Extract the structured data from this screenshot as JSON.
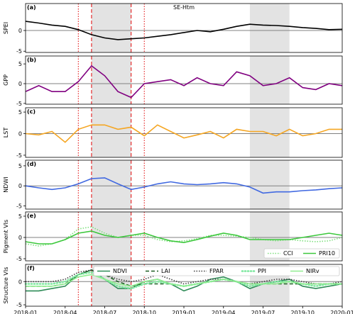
{
  "chart_data": [
    {
      "type": "line",
      "title": "SE-Htm",
      "label": "(a)",
      "ylabel": "SPEI",
      "x": [
        "2018-01",
        "2018-02",
        "2018-03",
        "2018-04",
        "2018-05",
        "2018-06",
        "2018-07",
        "2018-08",
        "2018-09",
        "2018-10",
        "2018-11",
        "2018-12",
        "2019-01",
        "2019-02",
        "2019-03",
        "2019-04",
        "2019-05",
        "2019-06",
        "2019-07",
        "2019-08",
        "2019-09",
        "2019-10",
        "2019-11",
        "2019-12",
        "2020-01"
      ],
      "xlim": [
        "2018-01",
        "2020-01"
      ],
      "ylim": [
        -5.3,
        6.5
      ],
      "yticks": [
        -5,
        0
      ],
      "zero_line": true,
      "shaded": [
        [
          "2018-06",
          "2018-09"
        ],
        [
          "2019-06",
          "2019-09"
        ]
      ],
      "vlines": [
        {
          "x": "2018-05",
          "style": "dotted",
          "color": "#e41a1c"
        },
        {
          "x": "2018-06",
          "style": "dashed",
          "color": "#e41a1c"
        },
        {
          "x": "2018-09",
          "style": "dashed",
          "color": "#e41a1c"
        },
        {
          "x": "2018-10",
          "style": "dotted",
          "color": "#e41a1c"
        }
      ],
      "series": [
        {
          "name": "SPEI",
          "color": "#000000",
          "style": "solid",
          "values": [
            2.2,
            1.8,
            1.3,
            1.0,
            0.2,
            -1.0,
            -1.8,
            -2.2,
            -2.0,
            -1.8,
            -1.4,
            -1.0,
            -0.5,
            0,
            -0.3,
            0.3,
            1.0,
            1.5,
            1.3,
            1.2,
            1.0,
            0.7,
            0.5,
            0.2,
            0.3
          ]
        }
      ]
    },
    {
      "type": "line",
      "label": "(b)",
      "ylabel": "GPP",
      "x": [
        "2018-01",
        "2018-02",
        "2018-03",
        "2018-04",
        "2018-05",
        "2018-06",
        "2018-07",
        "2018-08",
        "2018-09",
        "2018-10",
        "2018-11",
        "2018-12",
        "2019-01",
        "2019-02",
        "2019-03",
        "2019-04",
        "2019-05",
        "2019-06",
        "2019-07",
        "2019-08",
        "2019-09",
        "2019-10",
        "2019-11",
        "2019-12",
        "2020-01"
      ],
      "xlim": [
        "2018-01",
        "2020-01"
      ],
      "ylim": [
        -5.2,
        7
      ],
      "yticks": [
        -5,
        0,
        5
      ],
      "zero_line": true,
      "shaded": [
        [
          "2018-06",
          "2018-09"
        ],
        [
          "2019-06",
          "2019-09"
        ]
      ],
      "vlines": [
        {
          "x": "2018-05",
          "style": "dotted",
          "color": "#e41a1c"
        },
        {
          "x": "2018-06",
          "style": "dashed",
          "color": "#e41a1c"
        },
        {
          "x": "2018-09",
          "style": "dashed",
          "color": "#e41a1c"
        },
        {
          "x": "2018-10",
          "style": "dotted",
          "color": "#e41a1c"
        }
      ],
      "series": [
        {
          "name": "GPP",
          "color": "#800080",
          "style": "solid",
          "values": [
            -2,
            -0.5,
            -2,
            -2,
            0.5,
            4.5,
            2,
            -2,
            -3.5,
            0,
            0.5,
            1,
            -0.5,
            1.5,
            0,
            -0.5,
            3,
            2,
            -0.5,
            0,
            1.5,
            -1,
            -1.5,
            0,
            -0.5
          ]
        }
      ]
    },
    {
      "type": "line",
      "label": "(c)",
      "ylabel": "LST",
      "x": [
        "2018-01",
        "2018-02",
        "2018-03",
        "2018-04",
        "2018-05",
        "2018-06",
        "2018-07",
        "2018-08",
        "2018-09",
        "2018-10",
        "2018-11",
        "2018-12",
        "2019-01",
        "2019-02",
        "2019-03",
        "2019-04",
        "2019-05",
        "2019-06",
        "2019-07",
        "2019-08",
        "2019-09",
        "2019-10",
        "2019-11",
        "2019-12",
        "2020-01"
      ],
      "xlim": [
        "2018-01",
        "2020-01"
      ],
      "ylim": [
        -5.5,
        6
      ],
      "yticks": [
        -5,
        0,
        5
      ],
      "zero_line": true,
      "shaded": [
        [
          "2018-06",
          "2018-09"
        ],
        [
          "2019-06",
          "2019-09"
        ]
      ],
      "vlines": [
        {
          "x": "2018-05",
          "style": "dotted",
          "color": "#e41a1c"
        },
        {
          "x": "2018-06",
          "style": "dashed",
          "color": "#e41a1c"
        },
        {
          "x": "2018-09",
          "style": "dashed",
          "color": "#e41a1c"
        },
        {
          "x": "2018-10",
          "style": "dotted",
          "color": "#e41a1c"
        }
      ],
      "series": [
        {
          "name": "LST",
          "color": "#f5a623",
          "style": "solid",
          "values": [
            0,
            -0.3,
            0.5,
            -2,
            1,
            2,
            2,
            1,
            1.5,
            -0.5,
            2,
            0.5,
            -1,
            -0.3,
            0.5,
            -1,
            1,
            0.5,
            0.5,
            -0.5,
            1,
            -0.5,
            0,
            1,
            1
          ]
        }
      ]
    },
    {
      "type": "line",
      "label": "(d)",
      "ylabel": "NDWI",
      "x": [
        "2018-01",
        "2018-02",
        "2018-03",
        "2018-04",
        "2018-05",
        "2018-06",
        "2018-07",
        "2018-08",
        "2018-09",
        "2018-10",
        "2018-11",
        "2018-12",
        "2019-01",
        "2019-02",
        "2019-03",
        "2019-04",
        "2019-05",
        "2019-06",
        "2019-07",
        "2019-08",
        "2019-09",
        "2019-10",
        "2019-11",
        "2019-12",
        "2020-01"
      ],
      "xlim": [
        "2018-01",
        "2020-01"
      ],
      "ylim": [
        -5.8,
        6.4
      ],
      "yticks": [
        -5,
        0,
        5
      ],
      "zero_line": true,
      "shaded": [
        [
          "2018-06",
          "2018-09"
        ],
        [
          "2019-06",
          "2019-09"
        ]
      ],
      "vlines": [
        {
          "x": "2018-05",
          "style": "dotted",
          "color": "#e41a1c"
        },
        {
          "x": "2018-06",
          "style": "dashed",
          "color": "#e41a1c"
        },
        {
          "x": "2018-09",
          "style": "dashed",
          "color": "#e41a1c"
        },
        {
          "x": "2018-10",
          "style": "dotted",
          "color": "#e41a1c"
        }
      ],
      "series": [
        {
          "name": "NDWI",
          "color": "#4169e1",
          "style": "solid",
          "values": [
            0,
            -0.5,
            -0.9,
            -0.5,
            0.5,
            1.8,
            2,
            0.5,
            -0.9,
            -0.3,
            0.5,
            1,
            0.5,
            0.3,
            0.5,
            0.8,
            0.5,
            -0.3,
            -1.8,
            -1.5,
            -1.5,
            -1.2,
            -1,
            -0.7,
            -0.5
          ]
        }
      ]
    },
    {
      "type": "line",
      "label": "(e)",
      "ylabel": "Pigment VIs",
      "x": [
        "2018-01",
        "2018-02",
        "2018-03",
        "2018-04",
        "2018-05",
        "2018-06",
        "2018-07",
        "2018-08",
        "2018-09",
        "2018-10",
        "2018-11",
        "2018-12",
        "2019-01",
        "2019-02",
        "2019-03",
        "2019-04",
        "2019-05",
        "2019-06",
        "2019-07",
        "2019-08",
        "2019-09",
        "2019-10",
        "2019-11",
        "2019-12",
        "2020-01"
      ],
      "xlim": [
        "2018-01",
        "2020-01"
      ],
      "ylim": [
        -5.5,
        6
      ],
      "yticks": [
        -5,
        0,
        5
      ],
      "zero_line": true,
      "legend": "lower right",
      "shaded": [
        [
          "2018-06",
          "2018-09"
        ],
        [
          "2019-06",
          "2019-09"
        ]
      ],
      "vlines": [
        {
          "x": "2018-05",
          "style": "dotted",
          "color": "#e41a1c"
        },
        {
          "x": "2018-06",
          "style": "dashed",
          "color": "#e41a1c"
        },
        {
          "x": "2018-09",
          "style": "dashed",
          "color": "#e41a1c"
        },
        {
          "x": "2018-10",
          "style": "dotted",
          "color": "#e41a1c"
        }
      ],
      "series": [
        {
          "name": "CCI",
          "color": "#7ee07e",
          "style": "dotted",
          "values": [
            -1.5,
            -2,
            -1.5,
            -0.5,
            2,
            2.5,
            1,
            0,
            0.5,
            0.5,
            -0.5,
            -1,
            -0.8,
            -0.3,
            0.5,
            0.5,
            0.3,
            0,
            -0.5,
            -0.8,
            -0.5,
            -0.8,
            -1,
            -0.8,
            0
          ]
        },
        {
          "name": "PRI10",
          "color": "#3cc83c",
          "style": "solid",
          "values": [
            -1,
            -1.5,
            -1.5,
            -0.5,
            1,
            1.5,
            0.5,
            0,
            0.5,
            1,
            0,
            -0.8,
            -1.2,
            -0.5,
            0.3,
            1,
            0.5,
            -0.5,
            -0.5,
            -0.5,
            -0.5,
            0,
            0.5,
            1,
            0.5
          ]
        }
      ]
    },
    {
      "type": "line",
      "label": "(f)",
      "ylabel": "Structure VIs",
      "x": [
        "2018-01",
        "2018-02",
        "2018-03",
        "2018-04",
        "2018-05",
        "2018-06",
        "2018-07",
        "2018-08",
        "2018-09",
        "2018-10",
        "2018-11",
        "2018-12",
        "2019-01",
        "2019-02",
        "2019-03",
        "2019-04",
        "2019-05",
        "2019-06",
        "2019-07",
        "2019-08",
        "2019-09",
        "2019-10",
        "2019-11",
        "2019-12",
        "2020-01"
      ],
      "xlim": [
        "2018-01",
        "2020-01"
      ],
      "ylim": [
        -5.3,
        3.7
      ],
      "yticks": [
        -5,
        0
      ],
      "zero_line": true,
      "legend": "upper right",
      "xticks": [
        "2018-01",
        "2018-04",
        "2018-07",
        "2018-10",
        "2019-01",
        "2019-04",
        "2019-07",
        "2019-10",
        "2020-01"
      ],
      "shaded": [
        [
          "2018-06",
          "2018-09"
        ],
        [
          "2019-06",
          "2019-09"
        ]
      ],
      "vlines": [
        {
          "x": "2018-05",
          "style": "dotted",
          "color": "#e41a1c"
        },
        {
          "x": "2018-06",
          "style": "dashed",
          "color": "#e41a1c"
        },
        {
          "x": "2018-09",
          "style": "dashed",
          "color": "#e41a1c"
        },
        {
          "x": "2018-10",
          "style": "dotted",
          "color": "#e41a1c"
        }
      ],
      "series": [
        {
          "name": "NDVI",
          "color": "#2e8b57",
          "style": "solid",
          "values": [
            -2,
            -2,
            -1.5,
            -1,
            1.5,
            2.5,
            0.5,
            -1.5,
            -1.5,
            0,
            0.5,
            -0.5,
            -2,
            -1,
            0.5,
            1,
            0,
            -1.5,
            -0.5,
            0,
            0.5,
            -1,
            -1.5,
            -1,
            -0.5
          ]
        },
        {
          "name": "LAI",
          "color": "#1b5e20",
          "style": "dashed",
          "values": [
            -1,
            -1,
            -1,
            -0.5,
            1.5,
            2.5,
            1.5,
            0,
            -1,
            -0.5,
            -0.5,
            -0.5,
            -1,
            -0.5,
            0,
            0.5,
            0,
            -0.5,
            -0.5,
            -0.5,
            -0.5,
            -0.5,
            -0.5,
            -0.5,
            -0.5
          ]
        },
        {
          "name": "FPAR",
          "color": "#404040",
          "style": "dotted",
          "values": [
            0,
            0,
            0,
            0.5,
            2,
            2.5,
            1.5,
            0.5,
            0,
            0.5,
            1.5,
            0.5,
            -0.5,
            0,
            0.5,
            0.5,
            0,
            -0.5,
            0,
            0.5,
            0.5,
            0,
            -0.5,
            -0.5,
            0
          ]
        },
        {
          "name": "PPI",
          "color": "#7fe8a0",
          "style": "thickdot",
          "values": [
            -0.5,
            -0.5,
            -0.5,
            0,
            1.5,
            2,
            0.5,
            -1,
            -1.5,
            -0.5,
            0,
            -0.5,
            -1,
            -0.5,
            0,
            0.5,
            0,
            -1,
            -0.5,
            0,
            0,
            -0.5,
            -1,
            -0.5,
            -0.5
          ]
        },
        {
          "name": "NIRv",
          "color": "#90ee90",
          "style": "solid",
          "values": [
            -1,
            -1,
            -1,
            -0.5,
            1,
            1.5,
            0.5,
            -0.5,
            -1,
            0,
            0.5,
            -0.5,
            -1,
            -0.5,
            0,
            0.5,
            0,
            -0.5,
            -0.5,
            -0.5,
            0,
            -0.5,
            -0.5,
            -0.5,
            -0.5
          ]
        }
      ]
    }
  ]
}
